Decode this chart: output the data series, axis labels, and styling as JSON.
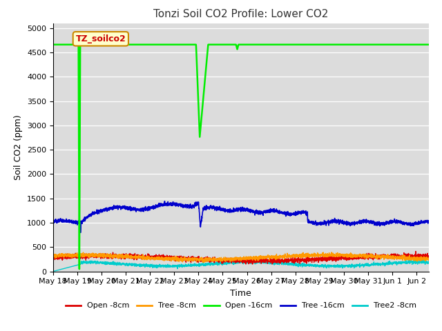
{
  "title": "Tonzi Soil CO2 Profile: Lower CO2",
  "xlabel": "Time",
  "ylabel": "Soil CO2 (ppm)",
  "ylim": [
    0,
    5100
  ],
  "yticks": [
    0,
    500,
    1000,
    1500,
    2000,
    2500,
    3000,
    3500,
    4000,
    4500,
    5000
  ],
  "bg_color": "#dcdcdc",
  "fig_color": "#ffffff",
  "legend_label": "TZ_soilco2",
  "legend_box_color": "#ffffcc",
  "legend_box_edge": "#cc8800",
  "series": {
    "open_8cm": {
      "color": "#dd0000",
      "label": "Open -8cm"
    },
    "tree_8cm": {
      "color": "#ff9900",
      "label": "Tree -8cm"
    },
    "open_16cm": {
      "color": "#00ee00",
      "label": "Open -16cm"
    },
    "tree_16cm": {
      "color": "#0000cc",
      "label": "Tree -16cm"
    },
    "tree2_8cm": {
      "color": "#00cccc",
      "label": "Tree2 -8cm"
    }
  },
  "x_tick_labels": [
    "May 18",
    "May 19",
    "May 20",
    "May 21",
    "May 22",
    "May 23",
    "May 24",
    "May 25",
    "May 26",
    "May 27",
    "May 28",
    "May 29",
    "May 30",
    "May 31",
    "Jun 1",
    "Jun 2"
  ]
}
